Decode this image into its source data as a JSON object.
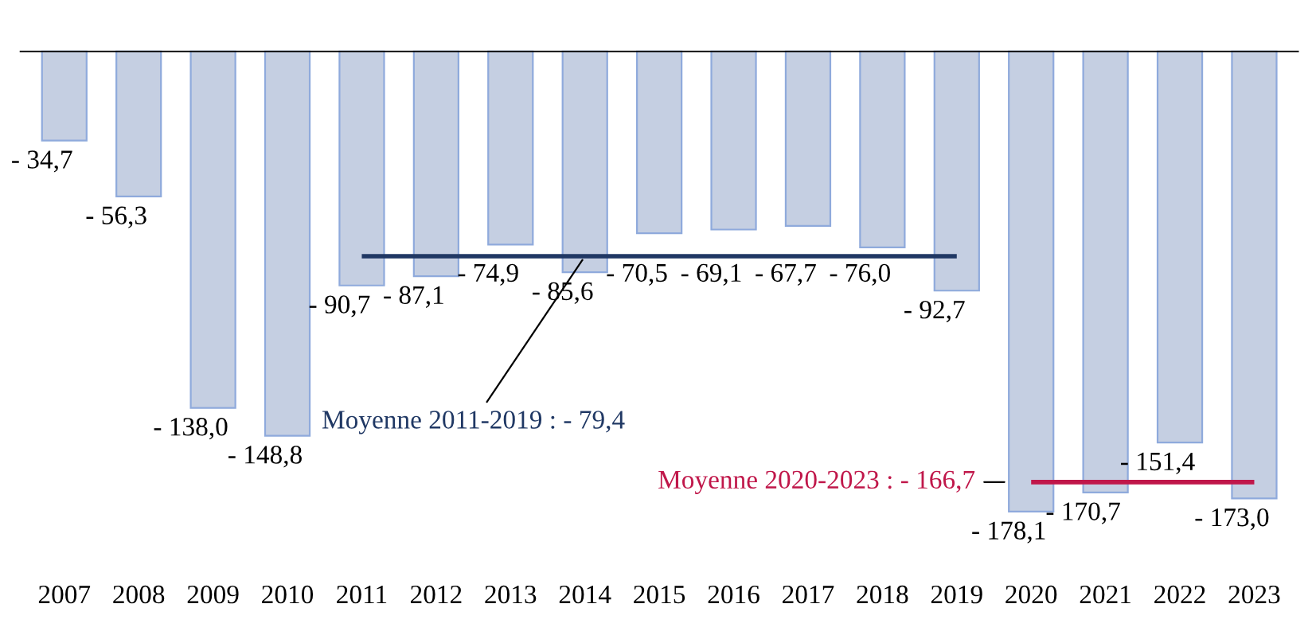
{
  "chart_data": {
    "type": "bar",
    "categories": [
      "2007",
      "2008",
      "2009",
      "2010",
      "2011",
      "2012",
      "2013",
      "2014",
      "2015",
      "2016",
      "2017",
      "2018",
      "2019",
      "2020",
      "2021",
      "2022",
      "2023"
    ],
    "series": [
      {
        "type": "bar",
        "color": "#c5cfe2",
        "values": [
          -34.7,
          -56.3,
          -138.0,
          -148.8,
          -90.7,
          -87.1,
          -74.9,
          -85.6,
          -70.5,
          -69.1,
          -67.7,
          -76.0,
          -92.7,
          -178.1,
          -170.7,
          -151.4,
          -173.0
        ],
        "value_labels": [
          "- 34,7",
          "- 56,3",
          "- 138,0",
          "- 148,8",
          "- 90,7",
          "- 87,1",
          "- 74,9",
          "- 85,6",
          "- 70,5",
          "- 69,1",
          "- 67,7",
          "- 76,0",
          "- 92,7",
          "- 178,1",
          "- 170,7",
          "- 151,4",
          "- 173,0"
        ]
      },
      {
        "type": "line",
        "name": "Moyenne 2011-2019 : - 79,4",
        "color": "#203864",
        "values": [
          null,
          null,
          null,
          null,
          -79.4,
          -79.4,
          -79.4,
          -79.4,
          -79.4,
          -79.4,
          -79.4,
          -79.4,
          -79.4,
          null,
          null,
          null,
          null
        ]
      },
      {
        "type": "line",
        "name": "Moyenne 2020-2023 : - 166,7",
        "color": "#c0174a",
        "values": [
          null,
          null,
          null,
          null,
          null,
          null,
          null,
          null,
          null,
          null,
          null,
          null,
          null,
          -166.7,
          -166.7,
          -166.7,
          -166.7
        ]
      }
    ],
    "legend": false,
    "grid": false
  }
}
